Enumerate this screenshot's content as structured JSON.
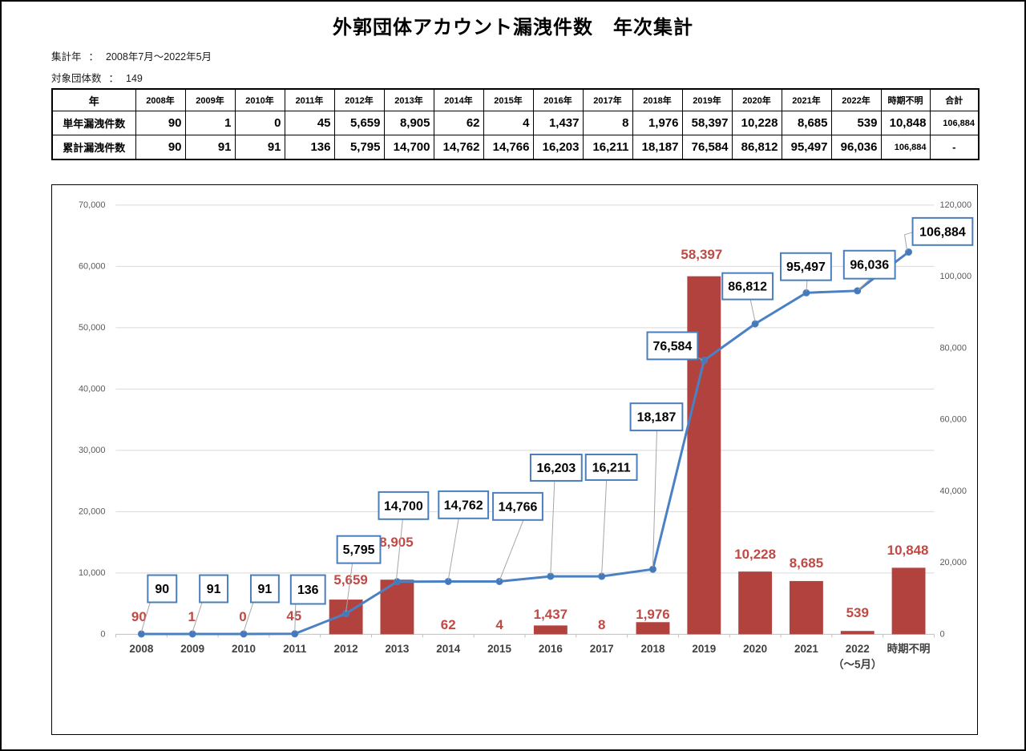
{
  "page": {
    "title": "外郭団体アカウント漏洩件数　年次集計",
    "meta_rows": [
      {
        "label": "集計年",
        "sep": "：",
        "value": "2008年7月～2022年5月"
      },
      {
        "label": "対象団体数",
        "sep": "：",
        "value": "149"
      }
    ]
  },
  "table": {
    "corner": "年",
    "columns": [
      "2008年",
      "2009年",
      "2010年",
      "2011年",
      "2012年",
      "2013年",
      "2014年",
      "2015年",
      "2016年",
      "2017年",
      "2018年",
      "2019年",
      "2020年",
      "2021年",
      "2022年",
      "時期不明",
      "合計"
    ],
    "rows": [
      {
        "label": "単年漏洩件数",
        "cells": [
          "90",
          "1",
          "0",
          "45",
          "5,659",
          "8,905",
          "62",
          "4",
          "1,437",
          "8",
          "1,976",
          "58,397",
          "10,228",
          "8,685",
          "539",
          "10,848",
          "106,884"
        ]
      },
      {
        "label": "累計漏洩件数",
        "cells": [
          "90",
          "91",
          "91",
          "136",
          "5,795",
          "14,700",
          "14,762",
          "14,766",
          "16,203",
          "16,211",
          "18,187",
          "76,584",
          "86,812",
          "95,497",
          "96,036",
          "106,884",
          "-"
        ]
      }
    ]
  },
  "chart_data": {
    "type": "combo",
    "categories": [
      "2008",
      "2009",
      "2010",
      "2011",
      "2012",
      "2013",
      "2014",
      "2015",
      "2016",
      "2017",
      "2018",
      "2019",
      "2020",
      "2021",
      "2022",
      "時期不明"
    ],
    "category_sublabels": [
      "",
      "",
      "",
      "",
      "",
      "",
      "",
      "",
      "",
      "",
      "",
      "",
      "",
      "",
      "（～5月）",
      ""
    ],
    "series": [
      {
        "name": "単年漏洩件数",
        "type": "bar",
        "axis": "left",
        "values": [
          90,
          1,
          0,
          45,
          5659,
          8905,
          62,
          4,
          1437,
          8,
          1976,
          58397,
          10228,
          8685,
          539,
          10848
        ],
        "labels": [
          "90",
          "1",
          "0",
          "45",
          "5,659",
          "8,905",
          "62",
          "4",
          "1,437",
          "8",
          "1,976",
          "58,397",
          "10,228",
          "8,685",
          "539",
          "10,848"
        ]
      },
      {
        "name": "累計漏洩件数",
        "type": "line",
        "axis": "right",
        "values": [
          90,
          91,
          91,
          136,
          5795,
          14700,
          14762,
          14766,
          16203,
          16211,
          18187,
          76584,
          86812,
          95497,
          96036,
          106884
        ],
        "labels": [
          "90",
          "91",
          "91",
          "136",
          "5,795",
          "14,700",
          "14,762",
          "14,766",
          "16,203",
          "16,211",
          "18,187",
          "76,584",
          "86,812",
          "95,497",
          "96,036",
          "106,884"
        ]
      }
    ],
    "axes": {
      "left": {
        "min": 0,
        "max": 70000,
        "step": 10000,
        "tick_labels": [
          "0",
          "10,000",
          "20,000",
          "30,000",
          "40,000",
          "50,000",
          "60,000",
          "70,000"
        ]
      },
      "right": {
        "min": 0,
        "max": 120000,
        "step": 20000,
        "tick_labels": [
          "0",
          "20,000",
          "40,000",
          "60,000",
          "80,000",
          "100,000",
          "120,000"
        ]
      }
    },
    "grid": true,
    "legend": "none"
  },
  "colors": {
    "bar": "#b2423e",
    "bar_label": "#bf4a45",
    "line": "#4a80c4",
    "marker": "#4679b8",
    "callout_border": "#4a7ebb",
    "callout_fill": "#ffffff",
    "callout_text": "#000000",
    "leader": "#a6a6a6",
    "gridline": "#d9d9d9",
    "axis_line": "#bfbfbf",
    "y_tick_text": "#595959",
    "x_tick_text": "#404040"
  }
}
